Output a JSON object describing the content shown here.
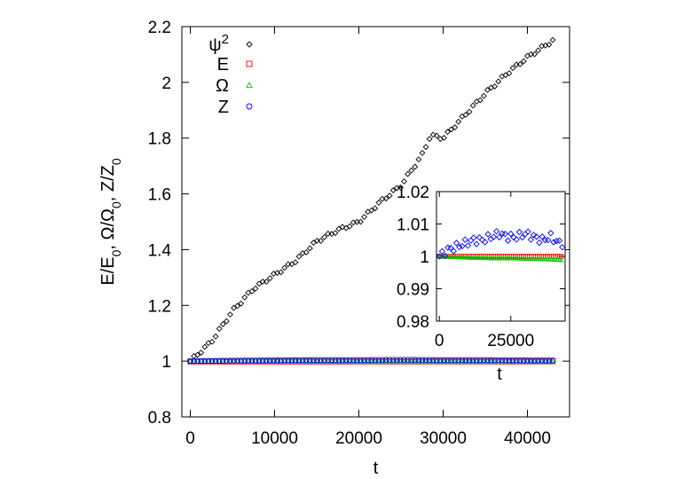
{
  "chart_data": [
    {
      "type": "scatter",
      "xlabel": "t",
      "ylabel": "E/E_0, Ω/Ω_0, Z/Z_0",
      "xlim": [
        -1000,
        45000
      ],
      "ylim": [
        0.8,
        2.2
      ],
      "xticks": [
        0,
        10000,
        20000,
        30000,
        40000
      ],
      "yticks": [
        0.8,
        1.0,
        1.2,
        1.4,
        1.6,
        1.8,
        2.0,
        2.2
      ],
      "xtick_labels": [
        "0",
        "10000",
        "20000",
        "30000",
        "40000"
      ],
      "ytick_labels": [
        "0.8",
        "1",
        "1.2",
        "1.4",
        "1.6",
        "1.8",
        "2",
        "2.2"
      ],
      "legend_position": "top-left",
      "series": [
        {
          "name": "ψ²",
          "marker": "diamond",
          "color": "#000000",
          "x": [
            0,
            2500,
            5000,
            7500,
            10000,
            12500,
            15000,
            17500,
            20000,
            22500,
            25000,
            27500,
            28500,
            30000,
            32500,
            35000,
            37500,
            40000,
            43000
          ],
          "y": [
            1.0,
            1.07,
            1.18,
            1.26,
            1.31,
            1.36,
            1.43,
            1.47,
            1.5,
            1.57,
            1.63,
            1.74,
            1.81,
            1.8,
            1.88,
            1.96,
            2.03,
            2.09,
            2.15
          ]
        },
        {
          "name": "E",
          "marker": "square",
          "color": "#ff0000",
          "x": [
            0,
            5000,
            10000,
            15000,
            20000,
            25000,
            30000,
            35000,
            40000,
            43000
          ],
          "y": [
            0.999,
            0.999,
            0.999,
            0.999,
            0.999,
            0.999,
            0.999,
            0.999,
            0.999,
            0.999
          ]
        },
        {
          "name": "Ω",
          "marker": "triangle",
          "color": "#00cc00",
          "x": [
            0,
            5000,
            10000,
            15000,
            20000,
            25000,
            30000,
            35000,
            40000,
            43000
          ],
          "y": [
            1.0,
            1.0,
            1.0,
            1.0,
            0.999,
            0.999,
            0.999,
            0.999,
            0.999,
            0.998
          ]
        },
        {
          "name": "Z",
          "marker": "circle",
          "color": "#0000ff",
          "x": [
            0,
            5000,
            10000,
            15000,
            20000,
            25000,
            30000,
            35000,
            40000,
            43000
          ],
          "y": [
            1.0,
            1.002,
            1.003,
            1.004,
            1.004,
            1.005,
            1.004,
            1.004,
            1.003,
            1.003
          ]
        }
      ]
    },
    {
      "type": "scatter",
      "xlabel": "t",
      "ylabel": "",
      "xlim": [
        -1000,
        44000
      ],
      "ylim": [
        0.98,
        1.02
      ],
      "xticks": [
        0,
        25000
      ],
      "yticks": [
        0.98,
        0.99,
        1.0,
        1.01,
        1.02
      ],
      "xtick_labels": [
        "0",
        "25000"
      ],
      "ytick_labels": [
        "0.98",
        "0.99",
        "1",
        "1.01",
        "1.02"
      ],
      "series": [
        {
          "name": "E",
          "marker": "square",
          "color": "#ff0000",
          "x": [
            0,
            5000,
            10000,
            15000,
            20000,
            25000,
            30000,
            35000,
            40000,
            43000
          ],
          "y": [
            1.0,
            1.0,
            1.0,
            1.0,
            1.0,
            1.0,
            1.0,
            1.0,
            1.0,
            1.0
          ]
        },
        {
          "name": "Ω",
          "marker": "triangle",
          "color": "#00cc00",
          "x": [
            0,
            5000,
            10000,
            15000,
            20000,
            25000,
            30000,
            35000,
            40000,
            43000
          ],
          "y": [
            1.0,
            0.9998,
            0.9996,
            0.9995,
            0.9994,
            0.9994,
            0.9993,
            0.9992,
            0.999,
            0.9988
          ]
        },
        {
          "name": "Z",
          "marker": "diamond",
          "color": "#0000ff",
          "x": [
            0,
            3000,
            6000,
            9000,
            12000,
            15000,
            18000,
            21000,
            24000,
            27000,
            30000,
            33000,
            36000,
            39000,
            42000,
            43500
          ],
          "y": [
            1.0,
            1.002,
            1.003,
            1.004,
            1.005,
            1.005,
            1.006,
            1.007,
            1.006,
            1.006,
            1.007,
            1.006,
            1.005,
            1.006,
            1.004,
            1.004
          ]
        }
      ]
    }
  ]
}
